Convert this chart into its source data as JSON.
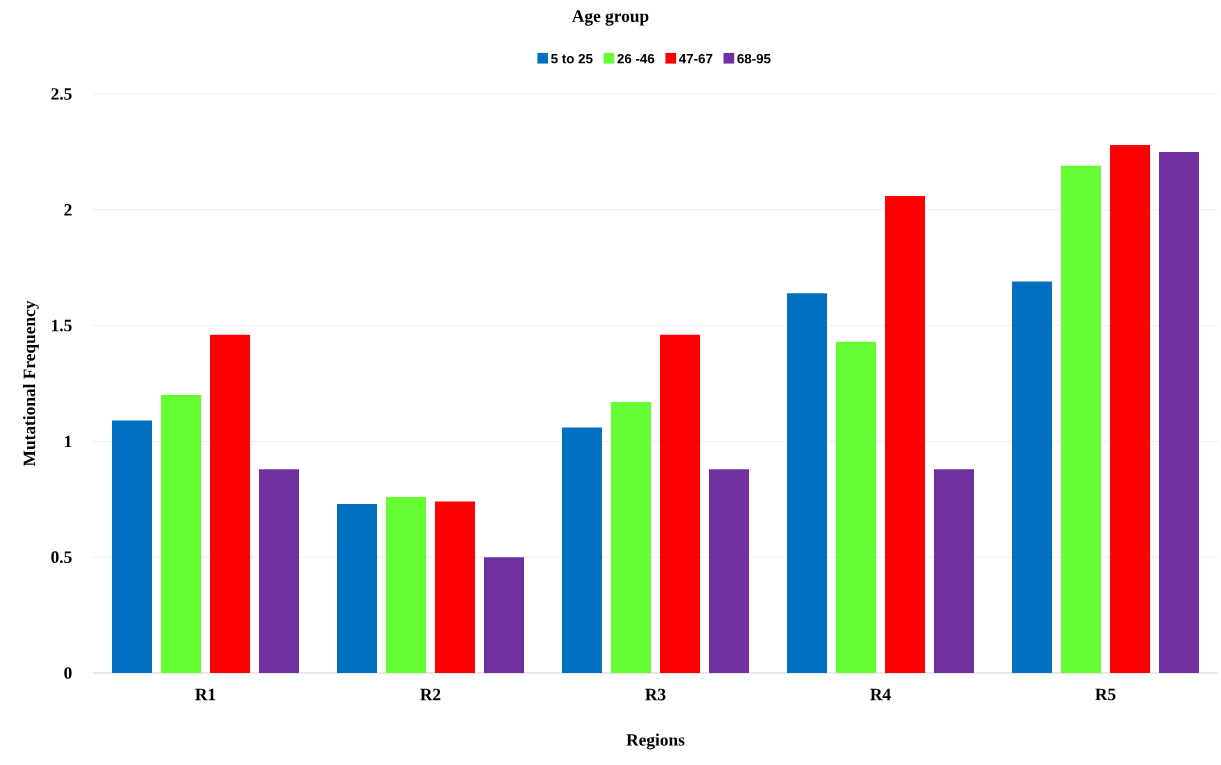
{
  "chart_data": {
    "type": "bar",
    "legend_title": "Age group",
    "xlabel": "Regions",
    "ylabel": "Mutational Frequency",
    "categories": [
      "R1",
      "R2",
      "R3",
      "R4",
      "R5"
    ],
    "series": [
      {
        "name": "5 to 25",
        "color": "#0070c0",
        "values": [
          1.09,
          0.73,
          1.06,
          1.64,
          1.69
        ]
      },
      {
        "name": "26 -46",
        "color": "#66ff33",
        "values": [
          1.2,
          0.76,
          1.17,
          1.43,
          2.19
        ]
      },
      {
        "name": "47-67",
        "color": "#ff0000",
        "values": [
          1.46,
          0.74,
          1.46,
          2.06,
          2.28
        ]
      },
      {
        "name": "68-95",
        "color": "#7030a0",
        "values": [
          0.88,
          0.5,
          0.88,
          0.88,
          2.25
        ]
      }
    ],
    "ylim": [
      0,
      2.5
    ],
    "yticks": [
      0,
      0.5,
      1,
      1.5,
      2,
      2.5
    ],
    "grid": "y",
    "legend": "top"
  }
}
